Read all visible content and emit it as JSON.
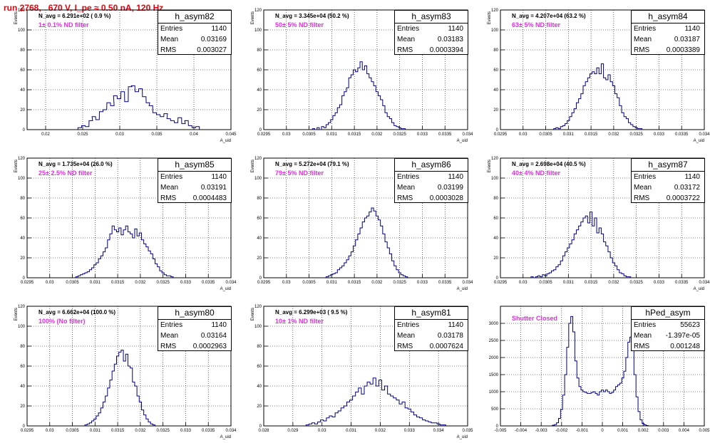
{
  "page_title": "run 2768,   670 V, I_pe ≈ 0.50 nA, 120 Hz",
  "stat_labels": {
    "entries": "Entries",
    "mean": "Mean",
    "rms": "RMS"
  },
  "colors": {
    "histogram": "#00007f",
    "annotation": "#e030e0",
    "title": "#e8000b"
  },
  "chart_data": [
    {
      "type": "histogram",
      "name": "h_asym82",
      "stats": {
        "entries": "1140",
        "mean": "0.03169",
        "rms": "0.003027"
      },
      "navg_label": "N_avg = 6.291e+02 ( 0.9 %)",
      "annotation": "1± 0.1% ND filter",
      "ylabel": "Events",
      "xlabel": "A_uid",
      "xlim": [
        0.0175,
        0.045
      ],
      "ylim": [
        0,
        120
      ],
      "xticks": [
        "0.02",
        "0.025",
        "0.03",
        "0.035",
        "0.04",
        "0.045"
      ],
      "xtick_values": [
        0.02,
        0.025,
        0.03,
        0.035,
        0.04,
        0.045
      ],
      "yticks": [
        0,
        20,
        40,
        60,
        80,
        100,
        120
      ],
      "grid": true,
      "bin_width": 0.00048,
      "x": [
        0.0246,
        0.0251,
        0.0256,
        0.0261,
        0.0265,
        0.027,
        0.0275,
        0.028,
        0.0285,
        0.029,
        0.0294,
        0.0299,
        0.0304,
        0.0309,
        0.0314,
        0.0318,
        0.0323,
        0.0328,
        0.0333,
        0.0338,
        0.0342,
        0.0347,
        0.0352,
        0.0357,
        0.0362,
        0.0366,
        0.0371,
        0.0376,
        0.0381,
        0.0386,
        0.039,
        0.0395,
        0.04,
        0.0405
      ],
      "y": [
        2,
        4,
        3,
        9,
        13,
        10,
        18,
        20,
        27,
        24,
        34,
        31,
        38,
        28,
        43,
        44,
        38,
        41,
        33,
        27,
        24,
        17,
        15,
        13,
        16,
        11,
        9,
        7,
        12,
        6,
        9,
        4,
        2,
        3
      ]
    },
    {
      "type": "histogram",
      "name": "h_asym83",
      "stats": {
        "entries": "1140",
        "mean": "0.03183",
        "rms": "0.0003394"
      },
      "navg_label": "N_avg = 3.345e+04 (50.2 %)",
      "annotation": "50± 5% ND filter",
      "ylabel": "Events",
      "xlabel": "A_uid",
      "xlim": [
        0.0295,
        0.034
      ],
      "ylim": [
        0,
        120
      ],
      "xticks": [
        "0.0295",
        "0.03",
        "0.0305",
        "0.031",
        "0.0315",
        "0.032",
        "0.0325",
        "0.033",
        "0.0335",
        "0.034"
      ],
      "xtick_values": [
        0.0295,
        0.03,
        0.0305,
        0.031,
        0.0315,
        0.032,
        0.0325,
        0.033,
        0.0335,
        0.034
      ],
      "yticks": [
        0,
        20,
        40,
        60,
        80,
        100,
        120
      ],
      "grid": true,
      "bin_width": 5e-05,
      "x": [
        0.0306,
        0.03065,
        0.0307,
        0.03075,
        0.0308,
        0.03085,
        0.0309,
        0.03095,
        0.031,
        0.03105,
        0.0311,
        0.03115,
        0.0312,
        0.03125,
        0.0313,
        0.03135,
        0.0314,
        0.03145,
        0.0315,
        0.03155,
        0.0316,
        0.03165,
        0.0317,
        0.03175,
        0.0318,
        0.03185,
        0.0319,
        0.03195,
        0.032,
        0.03205,
        0.0321,
        0.03215,
        0.0322,
        0.03225,
        0.0323,
        0.03235,
        0.0324,
        0.03245,
        0.0325,
        0.03255,
        0.0326
      ],
      "y": [
        1,
        0,
        2,
        0,
        3,
        2,
        5,
        7,
        10,
        14,
        17,
        22,
        25,
        34,
        38,
        42,
        52,
        55,
        60,
        58,
        62,
        68,
        60,
        64,
        56,
        52,
        48,
        44,
        38,
        34,
        30,
        24,
        17,
        13,
        11,
        7,
        4,
        3,
        2,
        1,
        1
      ]
    },
    {
      "type": "histogram",
      "name": "h_asym84",
      "stats": {
        "entries": "1140",
        "mean": "0.03187",
        "rms": "0.0003389"
      },
      "navg_label": "N_avg = 4.207e+04 (63.2 %)",
      "annotation": "63± 5% ND filter",
      "ylabel": "Events",
      "xlabel": "A_uid",
      "xlim": [
        0.0295,
        0.034
      ],
      "ylim": [
        0,
        120
      ],
      "xticks": [
        "0.0295",
        "0.03",
        "0.0305",
        "0.031",
        "0.0315",
        "0.032",
        "0.0325",
        "0.033",
        "0.0335",
        "0.034"
      ],
      "xtick_values": [
        0.0295,
        0.03,
        0.0305,
        0.031,
        0.0315,
        0.032,
        0.0325,
        0.033,
        0.0335,
        0.034
      ],
      "yticks": [
        0,
        20,
        40,
        60,
        80,
        100,
        120
      ],
      "grid": true,
      "bin_width": 5e-05,
      "x": [
        0.0307,
        0.03075,
        0.0308,
        0.03085,
        0.0309,
        0.03095,
        0.031,
        0.03105,
        0.0311,
        0.03115,
        0.0312,
        0.03125,
        0.0313,
        0.03135,
        0.0314,
        0.03145,
        0.0315,
        0.03155,
        0.0316,
        0.03165,
        0.0317,
        0.03175,
        0.0318,
        0.03185,
        0.0319,
        0.03195,
        0.032,
        0.03205,
        0.0321,
        0.03215,
        0.0322,
        0.03225,
        0.0323,
        0.03235,
        0.0324,
        0.03245,
        0.0325,
        0.03255,
        0.0326
      ],
      "y": [
        1,
        2,
        1,
        3,
        4,
        6,
        9,
        13,
        17,
        21,
        27,
        31,
        36,
        44,
        48,
        52,
        56,
        58,
        56,
        62,
        56,
        66,
        52,
        50,
        55,
        48,
        44,
        36,
        32,
        24,
        17,
        13,
        11,
        7,
        5,
        3,
        2,
        1,
        1
      ]
    },
    {
      "type": "histogram",
      "name": "h_asym85",
      "stats": {
        "entries": "1140",
        "mean": "0.03191",
        "rms": "0.0004483"
      },
      "navg_label": "N_avg = 1.735e+04 (26.0 %)",
      "annotation": "25± 2.5% ND filter",
      "ylabel": "Events",
      "xlabel": "A_uid",
      "xlim": [
        0.0295,
        0.034
      ],
      "ylim": [
        0,
        120
      ],
      "xticks": [
        "0.0295",
        "0.03",
        "0.0305",
        "0.031",
        "0.0315",
        "0.032",
        "0.0325",
        "0.033",
        "0.0335",
        "0.034"
      ],
      "xtick_values": [
        0.0295,
        0.03,
        0.0305,
        0.031,
        0.0315,
        0.032,
        0.0325,
        0.033,
        0.0335,
        0.034
      ],
      "yticks": [
        0,
        20,
        40,
        60,
        80,
        100,
        120
      ],
      "grid": true,
      "bin_width": 5e-05,
      "x": [
        0.0306,
        0.03065,
        0.0307,
        0.03075,
        0.0308,
        0.03085,
        0.0309,
        0.03095,
        0.031,
        0.03105,
        0.0311,
        0.03115,
        0.0312,
        0.03125,
        0.0313,
        0.03135,
        0.0314,
        0.03145,
        0.0315,
        0.03155,
        0.0316,
        0.03165,
        0.0317,
        0.03175,
        0.0318,
        0.03185,
        0.0319,
        0.03195,
        0.032,
        0.03205,
        0.0321,
        0.03215,
        0.0322,
        0.03225,
        0.0323,
        0.03235,
        0.0324,
        0.03245,
        0.0325,
        0.03255,
        0.0326,
        0.03265,
        0.0327
      ],
      "y": [
        1,
        2,
        3,
        4,
        5,
        6,
        8,
        10,
        13,
        15,
        19,
        22,
        26,
        30,
        38,
        44,
        52,
        48,
        46,
        50,
        43,
        48,
        52,
        46,
        44,
        40,
        49,
        42,
        45,
        38,
        34,
        31,
        27,
        24,
        19,
        14,
        11,
        7,
        5,
        3,
        2,
        2,
        1
      ]
    },
    {
      "type": "histogram",
      "name": "h_asym86",
      "stats": {
        "entries": "1140",
        "mean": "0.03199",
        "rms": "0.0003028"
      },
      "navg_label": "N_avg = 5.272e+04 (79.1 %)",
      "annotation": "79± 5% ND filter",
      "ylabel": "Events",
      "xlabel": "A_uid",
      "xlim": [
        0.0295,
        0.034
      ],
      "ylim": [
        0,
        120
      ],
      "xticks": [
        "0.0295",
        "0.03",
        "0.0305",
        "0.031",
        "0.0315",
        "0.032",
        "0.0325",
        "0.033",
        "0.0335",
        "0.034"
      ],
      "xtick_values": [
        0.0295,
        0.03,
        0.0305,
        0.031,
        0.0315,
        0.032,
        0.0325,
        0.033,
        0.0335,
        0.034
      ],
      "yticks": [
        0,
        20,
        40,
        60,
        80,
        100,
        120
      ],
      "grid": true,
      "bin_width": 5e-05,
      "x": [
        0.0309,
        0.03095,
        0.031,
        0.03105,
        0.0311,
        0.03115,
        0.0312,
        0.03125,
        0.0313,
        0.03135,
        0.0314,
        0.03145,
        0.0315,
        0.03155,
        0.0316,
        0.03165,
        0.0317,
        0.03175,
        0.0318,
        0.03185,
        0.0319,
        0.03195,
        0.032,
        0.03205,
        0.0321,
        0.03215,
        0.0322,
        0.03225,
        0.0323,
        0.03235,
        0.0324,
        0.03245,
        0.0325,
        0.03255,
        0.0326,
        0.03265
      ],
      "y": [
        1,
        2,
        3,
        4,
        5,
        8,
        10,
        12,
        15,
        18,
        22,
        26,
        32,
        38,
        44,
        50,
        56,
        60,
        62,
        66,
        70,
        67,
        62,
        58,
        52,
        44,
        36,
        30,
        24,
        17,
        12,
        8,
        5,
        3,
        2,
        1
      ]
    },
    {
      "type": "histogram",
      "name": "h_asym87",
      "stats": {
        "entries": "1140",
        "mean": "0.03172",
        "rms": "0.0003722"
      },
      "navg_label": "N_avg = 2.698e+04 (40.5 %)",
      "annotation": "40± 4% ND filter",
      "ylabel": "Events",
      "xlabel": "A_uid",
      "xlim": [
        0.0295,
        0.034
      ],
      "ylim": [
        0,
        120
      ],
      "xticks": [
        "0.0295",
        "0.03",
        "0.0305",
        "0.031",
        "0.0315",
        "0.032",
        "0.0325",
        "0.033",
        "0.0335",
        "0.034"
      ],
      "xtick_values": [
        0.0295,
        0.03,
        0.0305,
        0.031,
        0.0315,
        0.032,
        0.0325,
        0.033,
        0.0335,
        0.034
      ],
      "yticks": [
        0,
        20,
        40,
        60,
        80,
        100,
        120
      ],
      "grid": true,
      "bin_width": 5e-05,
      "x": [
        0.0302,
        0.03025,
        0.0303,
        0.03035,
        0.0304,
        0.03045,
        0.0305,
        0.03055,
        0.0306,
        0.03065,
        0.0307,
        0.03075,
        0.0308,
        0.03085,
        0.0309,
        0.03095,
        0.031,
        0.03105,
        0.0311,
        0.03115,
        0.0312,
        0.03125,
        0.0313,
        0.03135,
        0.0314,
        0.03145,
        0.0315,
        0.03155,
        0.0316,
        0.03165,
        0.0317,
        0.03175,
        0.0318,
        0.03185,
        0.0319,
        0.03195,
        0.032,
        0.03205,
        0.0321,
        0.03215,
        0.0322,
        0.03225,
        0.0323,
        0.03235
      ],
      "y": [
        1,
        0,
        1,
        2,
        1,
        3,
        2,
        4,
        5,
        7,
        8,
        11,
        13,
        17,
        22,
        26,
        30,
        34,
        38,
        44,
        48,
        52,
        56,
        60,
        62,
        55,
        66,
        52,
        60,
        45,
        50,
        44,
        36,
        32,
        26,
        20,
        15,
        12,
        8,
        5,
        4,
        2,
        1,
        1
      ]
    },
    {
      "type": "histogram",
      "name": "h_asym80",
      "stats": {
        "entries": "1140",
        "mean": "0.03164",
        "rms": "0.0002963"
      },
      "navg_label": "N_avg = 6.662e+04 (100.0 %)",
      "annotation": "100% (No filter)",
      "ylabel": "Events",
      "xlabel": "A_uid",
      "xlim": [
        0.0295,
        0.034
      ],
      "ylim": [
        0,
        120
      ],
      "xticks": [
        "0.0295",
        "0.03",
        "0.0305",
        "0.031",
        "0.0315",
        "0.032",
        "0.0325",
        "0.033",
        "0.0335",
        "0.034"
      ],
      "xtick_values": [
        0.0295,
        0.03,
        0.0305,
        0.031,
        0.0315,
        0.032,
        0.0325,
        0.033,
        0.0335,
        0.034
      ],
      "yticks": [
        0,
        20,
        40,
        60,
        80,
        100,
        120
      ],
      "grid": true,
      "bin_width": 5e-05,
      "x": [
        0.0308,
        0.03085,
        0.0309,
        0.03095,
        0.031,
        0.03105,
        0.0311,
        0.03115,
        0.0312,
        0.03125,
        0.0313,
        0.03135,
        0.0314,
        0.03145,
        0.0315,
        0.03155,
        0.0316,
        0.03165,
        0.0317,
        0.03175,
        0.0318,
        0.03185,
        0.0319,
        0.03195,
        0.032,
        0.03205,
        0.0321,
        0.03215,
        0.0322,
        0.03225,
        0.0323
      ],
      "y": [
        1,
        2,
        3,
        5,
        7,
        10,
        13,
        18,
        24,
        30,
        38,
        46,
        55,
        62,
        70,
        74,
        76,
        65,
        72,
        60,
        58,
        44,
        40,
        30,
        24,
        16,
        11,
        7,
        4,
        2,
        1
      ]
    },
    {
      "type": "histogram",
      "name": "h_asym81",
      "stats": {
        "entries": "1140",
        "mean": "0.03178",
        "rms": "0.0007624"
      },
      "navg_label": "N_avg = 6.299e+03 ( 9.5 %)",
      "annotation": "10± 1% ND filter",
      "ylabel": "Events",
      "xlabel": "A_uid",
      "xlim": [
        0.028,
        0.035
      ],
      "ylim": [
        0,
        120
      ],
      "xticks": [
        "0.028",
        "0.029",
        "0.03",
        "0.031",
        "0.032",
        "0.033",
        "0.034",
        "0.035"
      ],
      "xtick_values": [
        0.028,
        0.029,
        0.03,
        0.031,
        0.032,
        0.033,
        0.034,
        0.035
      ],
      "yticks": [
        0,
        20,
        40,
        60,
        80,
        100,
        120
      ],
      "grid": true,
      "bin_width": 0.0001,
      "x": [
        0.0295,
        0.0296,
        0.0297,
        0.0298,
        0.0299,
        0.03,
        0.0301,
        0.0302,
        0.0303,
        0.0304,
        0.0305,
        0.0306,
        0.0307,
        0.0308,
        0.0309,
        0.031,
        0.0311,
        0.0312,
        0.0313,
        0.0314,
        0.0315,
        0.0316,
        0.0317,
        0.0318,
        0.0319,
        0.032,
        0.0321,
        0.0322,
        0.0323,
        0.0324,
        0.0325,
        0.0326,
        0.0327,
        0.0328,
        0.0329,
        0.033,
        0.0331,
        0.0332,
        0.0333,
        0.0334,
        0.0335,
        0.0336,
        0.0337,
        0.0338,
        0.0339,
        0.034,
        0.0341,
        0.0342
      ],
      "y": [
        1,
        2,
        3,
        2,
        4,
        6,
        5,
        8,
        10,
        9,
        13,
        15,
        18,
        20,
        24,
        26,
        30,
        34,
        38,
        32,
        40,
        44,
        42,
        48,
        40,
        46,
        36,
        40,
        32,
        30,
        28,
        26,
        22,
        24,
        18,
        17,
        14,
        11,
        9,
        8,
        6,
        5,
        4,
        3,
        3,
        2,
        1,
        1
      ]
    },
    {
      "type": "histogram",
      "name": "hPed_asym",
      "stats": {
        "entries": "55623",
        "mean": "-1.397e-05",
        "rms": "0.001248"
      },
      "navg_label": "",
      "annotation": "Shutter Closed",
      "ylabel": "",
      "xlabel": "",
      "xlim": [
        -0.005,
        0.005
      ],
      "ylim": [
        0,
        3500
      ],
      "xticks": [
        "-0.005",
        "-0.004",
        "-0.003",
        "-0.002",
        "-0.001",
        "0",
        "0.001",
        "0.002",
        "0.003",
        "0.004",
        "0.005"
      ],
      "xtick_values": [
        -0.005,
        -0.004,
        -0.003,
        -0.002,
        -0.001,
        0,
        0.001,
        0.002,
        0.003,
        0.004,
        0.005
      ],
      "yticks": [
        0,
        500,
        1000,
        1500,
        2000,
        2500,
        3000
      ],
      "grid": true,
      "bin_width": 0.0001,
      "x": [
        -0.0024,
        -0.0023,
        -0.0022,
        -0.0021,
        -0.002,
        -0.0019,
        -0.0018,
        -0.0017,
        -0.0016,
        -0.0015,
        -0.0014,
        -0.0013,
        -0.0012,
        -0.0011,
        -0.001,
        -0.0009,
        -0.0008,
        -0.0007,
        -0.0006,
        -0.0005,
        -0.0004,
        -0.0003,
        -0.0002,
        -0.0001,
        0,
        0.0001,
        0.0002,
        0.0003,
        0.0004,
        0.0005,
        0.0006,
        0.0007,
        0.0008,
        0.0009,
        0.001,
        0.0011,
        0.0012,
        0.0013,
        0.0014,
        0.0015,
        0.0016,
        0.0017,
        0.0018,
        0.0019,
        0.002,
        0.0021,
        0.0022
      ],
      "y": [
        20,
        40,
        90,
        220,
        480,
        900,
        1500,
        2300,
        3000,
        3200,
        2750,
        1900,
        1400,
        1150,
        1050,
        1000,
        980,
        950,
        950,
        980,
        1000,
        950,
        900,
        1000,
        1050,
        1000,
        1050,
        1000,
        950,
        980,
        1050,
        1150,
        1200,
        1250,
        1400,
        1600,
        2000,
        2450,
        2600,
        2200,
        1500,
        850,
        420,
        180,
        70,
        30,
        10
      ]
    }
  ]
}
